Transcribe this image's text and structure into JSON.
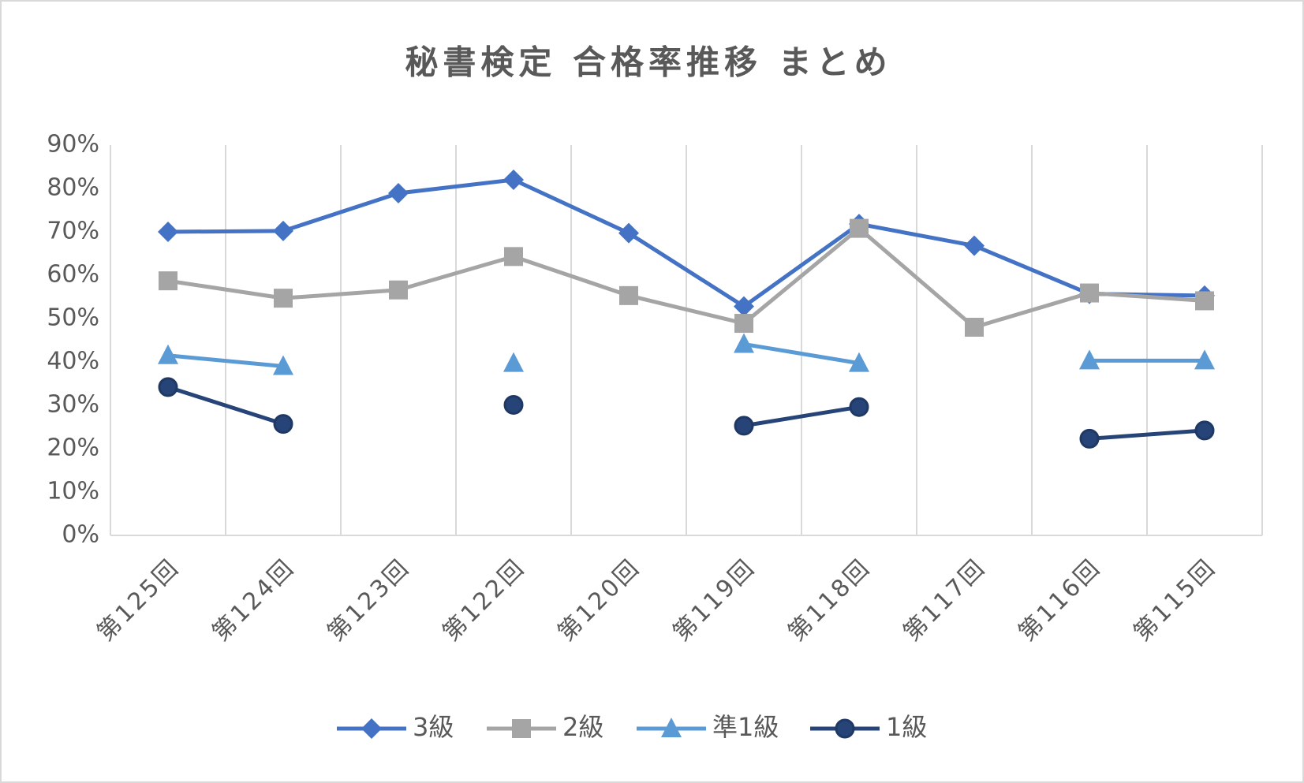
{
  "chart_data": {
    "type": "line",
    "title": "秘書検定 合格率推移 まとめ",
    "categories": [
      "第125回",
      "第124回",
      "第123回",
      "第122回",
      "第120回",
      "第119回",
      "第118回",
      "第117回",
      "第116回",
      "第115回"
    ],
    "series": [
      {
        "name": "3級",
        "color": "#4472c4",
        "marker": "diamond",
        "values": [
          70,
          70.2,
          78.9,
          82,
          69.7,
          52.8,
          71.8,
          66.8,
          55.7,
          55.3
        ]
      },
      {
        "name": "2級",
        "color": "#a5a5a5",
        "marker": "square",
        "values": [
          58.7,
          54.7,
          56.6,
          64.3,
          55.3,
          48.9,
          70.8,
          48,
          55.9,
          54.1
        ]
      },
      {
        "name": "準1級",
        "color": "#5b9bd5",
        "marker": "triangle",
        "values": [
          41.5,
          39,
          null,
          39.7,
          null,
          44.1,
          39.7,
          null,
          40.3,
          40.3
        ]
      },
      {
        "name": "1級",
        "color": "#264478",
        "marker": "circle",
        "values": [
          34.2,
          25.7,
          null,
          30.1,
          null,
          25.3,
          29.6,
          null,
          22.3,
          24.2
        ]
      }
    ],
    "ylim": [
      0,
      90
    ],
    "yticks": [
      {
        "value": 0,
        "label": "0%"
      },
      {
        "value": 10,
        "label": "10%"
      },
      {
        "value": 20,
        "label": "20%"
      },
      {
        "value": 30,
        "label": "30%"
      },
      {
        "value": 40,
        "label": "40%"
      },
      {
        "value": 50,
        "label": "50%"
      },
      {
        "value": 60,
        "label": "60%"
      },
      {
        "value": 70,
        "label": "70%"
      },
      {
        "value": 80,
        "label": "80%"
      },
      {
        "value": 90,
        "label": "90%"
      }
    ],
    "grid": true,
    "legend": "bottom"
  }
}
